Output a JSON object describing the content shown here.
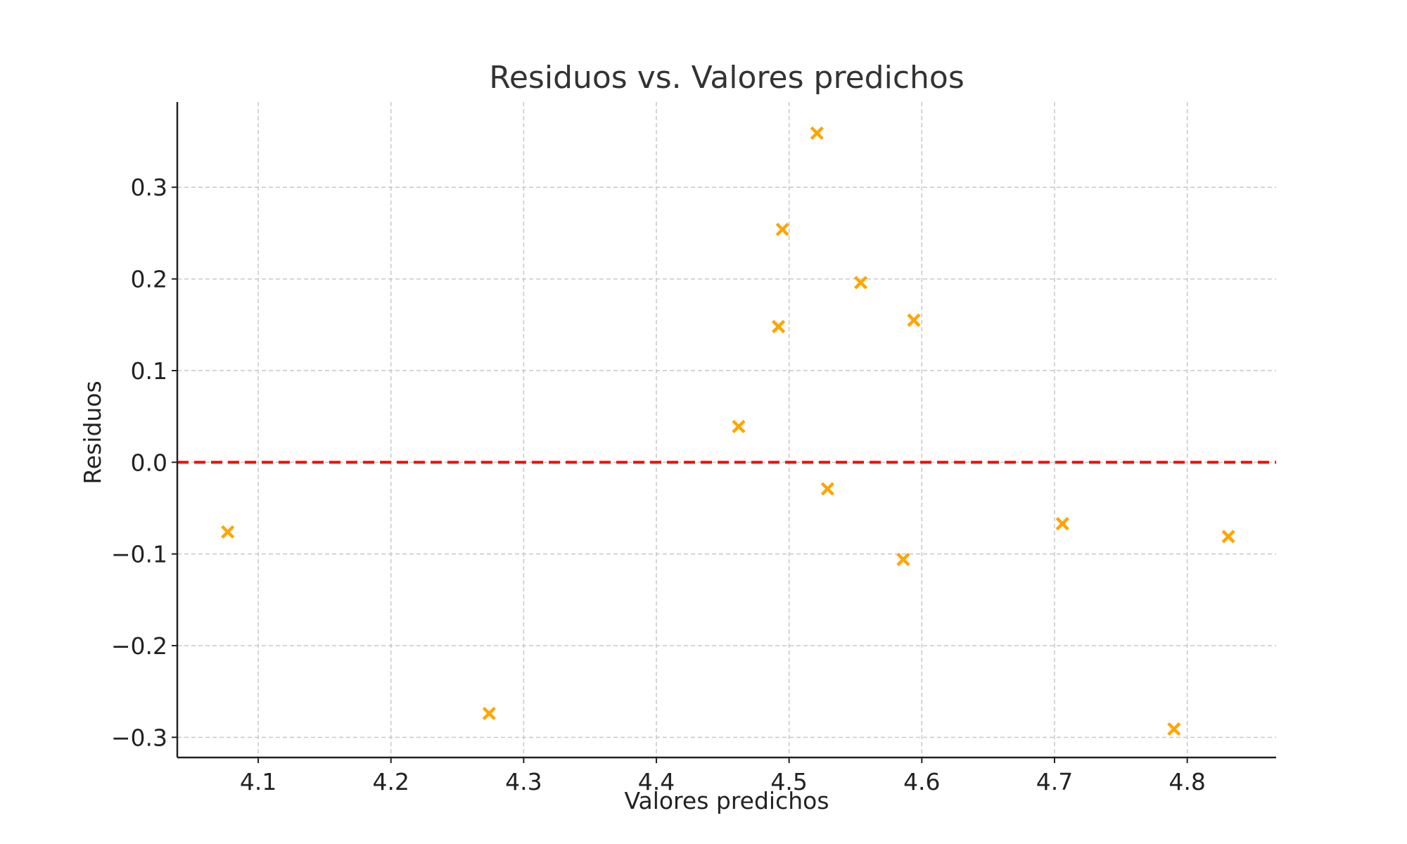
{
  "chart_data": {
    "type": "scatter",
    "title": "Residuos vs. Valores predichos",
    "xlabel": "Valores predichos",
    "ylabel": "Residuos",
    "xlim": [
      4.039,
      4.867
    ],
    "ylim": [
      -0.322,
      0.393
    ],
    "x_ticks": [
      4.1,
      4.2,
      4.3,
      4.4,
      4.5,
      4.6,
      4.7,
      4.8
    ],
    "x_tick_labels": [
      "4.1",
      "4.2",
      "4.3",
      "4.4",
      "4.5",
      "4.6",
      "4.7",
      "4.8"
    ],
    "y_ticks": [
      -0.3,
      -0.2,
      -0.1,
      0.0,
      0.1,
      0.2,
      0.3
    ],
    "y_tick_labels": [
      "−0.3",
      "−0.2",
      "−0.1",
      "0.0",
      "0.1",
      "0.2",
      "0.3"
    ],
    "grid": true,
    "marker": "x",
    "series": [
      {
        "color": "#FFA500",
        "x": [
          4.077,
          4.274,
          4.462,
          4.492,
          4.495,
          4.521,
          4.529,
          4.554,
          4.586,
          4.594,
          4.706,
          4.79,
          4.831
        ],
        "y": [
          -0.076,
          -0.274,
          0.039,
          0.148,
          0.254,
          0.359,
          -0.029,
          0.196,
          -0.106,
          0.155,
          -0.067,
          -0.291,
          -0.081
        ]
      }
    ],
    "reference_line": {
      "y": 0.0,
      "color": "#FF0000",
      "style": "dashed"
    }
  }
}
